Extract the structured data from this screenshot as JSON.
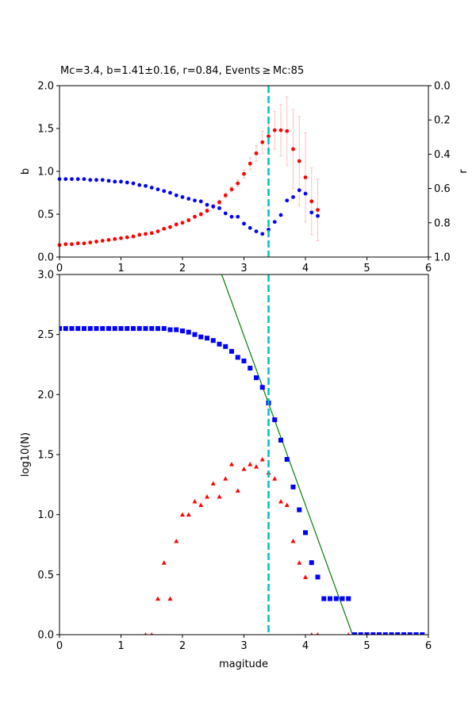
{
  "colors": {
    "b_series": "#ff0000",
    "r_series": "#0000ff",
    "err": "#ffc0c0",
    "mc_line": "#00bfbf",
    "fit_line": "#008000",
    "cum": "#0000ff",
    "noncum": "#ff0000"
  },
  "chart_data": [
    {
      "type": "scatter",
      "title": "Mc=3.4, b=1.41±0.16, r=0.84, Events ≥ Mc:85",
      "xlabel": "",
      "ylabel": "b",
      "ylabel_right": "r",
      "xlim": [
        0,
        6
      ],
      "ylim": [
        0,
        2
      ],
      "ylim_right": [
        1,
        0
      ],
      "xticks": [
        "0",
        "1",
        "2",
        "3",
        "4",
        "5",
        "6"
      ],
      "yticks": [
        "0.0",
        "0.5",
        "1.0",
        "1.5",
        "2.0"
      ],
      "yticks_right": [
        "0.0",
        "0.2",
        "0.4",
        "0.6",
        "0.8",
        "1.0"
      ],
      "mc": 3.4,
      "x": [
        0,
        0.1,
        0.2,
        0.3,
        0.4,
        0.5,
        0.6,
        0.7,
        0.8,
        0.9,
        1.0,
        1.1,
        1.2,
        1.3,
        1.4,
        1.5,
        1.6,
        1.7,
        1.8,
        1.9,
        2.0,
        2.1,
        2.2,
        2.3,
        2.4,
        2.5,
        2.6,
        2.7,
        2.8,
        2.9,
        3.0,
        3.1,
        3.2,
        3.3,
        3.4,
        3.5,
        3.6,
        3.7,
        3.8,
        3.9,
        4.0,
        4.1,
        4.2
      ],
      "series": [
        {
          "name": "b",
          "axis": "left",
          "values": [
            0.14,
            0.15,
            0.15,
            0.16,
            0.16,
            0.17,
            0.18,
            0.19,
            0.2,
            0.21,
            0.22,
            0.23,
            0.24,
            0.26,
            0.27,
            0.28,
            0.3,
            0.33,
            0.35,
            0.38,
            0.4,
            0.43,
            0.47,
            0.5,
            0.54,
            0.59,
            0.64,
            0.72,
            0.79,
            0.86,
            0.97,
            1.09,
            1.21,
            1.34,
            1.41,
            1.48,
            1.48,
            1.47,
            1.26,
            1.12,
            0.93,
            0.65,
            0.55
          ],
          "errors": [
            0.005,
            0.005,
            0.005,
            0.005,
            0.005,
            0.005,
            0.006,
            0.006,
            0.007,
            0.007,
            0.008,
            0.008,
            0.009,
            0.01,
            0.01,
            0.01,
            0.011,
            0.012,
            0.013,
            0.014,
            0.015,
            0.016,
            0.018,
            0.02,
            0.021,
            0.023,
            0.025,
            0.028,
            0.03,
            0.04,
            0.05,
            0.07,
            0.09,
            0.13,
            0.16,
            0.22,
            0.3,
            0.4,
            0.46,
            0.52,
            0.52,
            0.39,
            0.36
          ]
        },
        {
          "name": "r",
          "axis": "right",
          "values": [
            0.545,
            0.545,
            0.545,
            0.545,
            0.545,
            0.55,
            0.55,
            0.55,
            0.555,
            0.56,
            0.56,
            0.565,
            0.57,
            0.58,
            0.585,
            0.595,
            0.605,
            0.615,
            0.625,
            0.64,
            0.65,
            0.66,
            0.67,
            0.675,
            0.695,
            0.705,
            0.715,
            0.745,
            0.765,
            0.765,
            0.805,
            0.83,
            0.85,
            0.865,
            0.84,
            0.795,
            0.755,
            0.67,
            0.65,
            0.61,
            0.63,
            0.74,
            0.76
          ]
        }
      ]
    },
    {
      "type": "scatter",
      "xlabel": "magitude",
      "ylabel": "log10(N)",
      "xlim": [
        0,
        6
      ],
      "ylim": [
        0,
        3
      ],
      "xticks": [
        "0",
        "1",
        "2",
        "3",
        "4",
        "5",
        "6"
      ],
      "yticks": [
        "0.0",
        "0.5",
        "1.0",
        "1.5",
        "2.0",
        "2.5",
        "3.0"
      ],
      "mc": 3.4,
      "fit": {
        "a": 6.72,
        "b": 1.41
      },
      "series": [
        {
          "name": "cumulative",
          "marker": "square",
          "x": [
            0,
            0.1,
            0.2,
            0.3,
            0.4,
            0.5,
            0.6,
            0.7,
            0.8,
            0.9,
            1.0,
            1.1,
            1.2,
            1.3,
            1.4,
            1.5,
            1.6,
            1.7,
            1.8,
            1.9,
            2.0,
            2.1,
            2.2,
            2.3,
            2.4,
            2.5,
            2.6,
            2.7,
            2.8,
            2.9,
            3.0,
            3.1,
            3.2,
            3.3,
            3.4,
            3.5,
            3.6,
            3.7,
            3.8,
            3.9,
            4.0,
            4.1,
            4.2,
            4.3,
            4.4,
            4.5,
            4.6,
            4.7,
            4.8,
            4.9,
            5.0,
            5.1,
            5.2,
            5.3,
            5.4,
            5.5,
            5.6,
            5.7,
            5.8,
            5.9
          ],
          "values": [
            2.55,
            2.55,
            2.55,
            2.55,
            2.55,
            2.55,
            2.55,
            2.55,
            2.55,
            2.55,
            2.55,
            2.55,
            2.55,
            2.55,
            2.55,
            2.55,
            2.55,
            2.55,
            2.54,
            2.54,
            2.53,
            2.52,
            2.5,
            2.48,
            2.47,
            2.45,
            2.42,
            2.4,
            2.36,
            2.31,
            2.28,
            2.22,
            2.14,
            2.06,
            1.93,
            1.79,
            1.62,
            1.46,
            1.23,
            1.04,
            0.85,
            0.6,
            0.48,
            0.3,
            0.3,
            0.3,
            0.3,
            0.3,
            0,
            0,
            0,
            0,
            0,
            0,
            0,
            0,
            0,
            0,
            0,
            0
          ]
        },
        {
          "name": "non-cumulative",
          "marker": "triangle",
          "x": [
            1.4,
            1.5,
            1.6,
            1.7,
            1.8,
            1.9,
            2.0,
            2.1,
            2.2,
            2.3,
            2.4,
            2.5,
            2.6,
            2.7,
            2.8,
            2.9,
            3.0,
            3.1,
            3.2,
            3.3,
            3.4,
            3.5,
            3.6,
            3.7,
            3.8,
            3.9,
            4.0,
            4.1,
            4.2,
            4.7
          ],
          "values": [
            0,
            0,
            0.3,
            0.6,
            0.3,
            0.78,
            1.0,
            1.0,
            1.11,
            1.08,
            1.15,
            1.26,
            1.15,
            1.3,
            1.42,
            1.2,
            1.38,
            1.42,
            1.4,
            1.46,
            1.35,
            1.3,
            1.11,
            1.08,
            0.78,
            0.6,
            0.48,
            0,
            0,
            0
          ]
        }
      ]
    }
  ]
}
